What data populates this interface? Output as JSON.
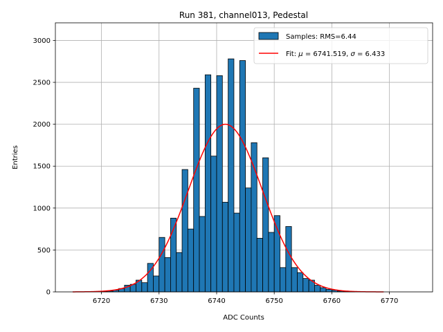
{
  "chart_data": {
    "type": "bar",
    "title": "Run 381, channel013, Pedestal",
    "xlabel": "ADC Counts",
    "ylabel": "Entries",
    "xlim": [
      6712.0,
      6777.5
    ],
    "ylim": [
      0,
      3210
    ],
    "xticks": [
      6720,
      6730,
      6740,
      6750,
      6760,
      6770
    ],
    "yticks": [
      0,
      500,
      1000,
      1500,
      2000,
      2500,
      3000
    ],
    "grid": true,
    "legend_position": "top-right",
    "colors": {
      "bar": "#1f77b4",
      "bar_edge": "#000000",
      "fit": "#ff0000",
      "grid": "#b0b0b0"
    },
    "series": [
      {
        "name": "Samples: RMS=6.44",
        "type": "histogram",
        "bin_edges": [
          6720,
          6721,
          6722,
          6723,
          6724,
          6725,
          6726,
          6727,
          6728,
          6729,
          6730,
          6731,
          6732,
          6733,
          6734,
          6735,
          6736,
          6737,
          6738,
          6739,
          6740,
          6741,
          6742,
          6743,
          6744,
          6745,
          6746,
          6747,
          6748,
          6749,
          6750,
          6751,
          6752,
          6753,
          6754,
          6755,
          6756,
          6757,
          6758,
          6759,
          6760,
          6761,
          6762,
          6763,
          6764
        ],
        "values": [
          5,
          10,
          20,
          40,
          80,
          90,
          140,
          110,
          340,
          190,
          650,
          410,
          880,
          470,
          1460,
          750,
          2430,
          900,
          2590,
          1620,
          2580,
          1070,
          2780,
          940,
          2760,
          1240,
          1780,
          640,
          1600,
          710,
          910,
          290,
          780,
          290,
          230,
          160,
          140,
          80,
          50,
          30,
          20,
          10,
          5,
          3
        ]
      },
      {
        "name": "Fit: $\\mu$ = 6741.519, $\\sigma$ = 6.433",
        "legend_parts": [
          "Fit: ",
          "μ",
          " = 6741.519, ",
          "σ",
          " = 6.433"
        ],
        "type": "line",
        "function": "gaussian",
        "mu": 6741.519,
        "sigma": 6.433,
        "amplitude": 2000,
        "x_range": [
          6715,
          6769
        ]
      }
    ]
  }
}
